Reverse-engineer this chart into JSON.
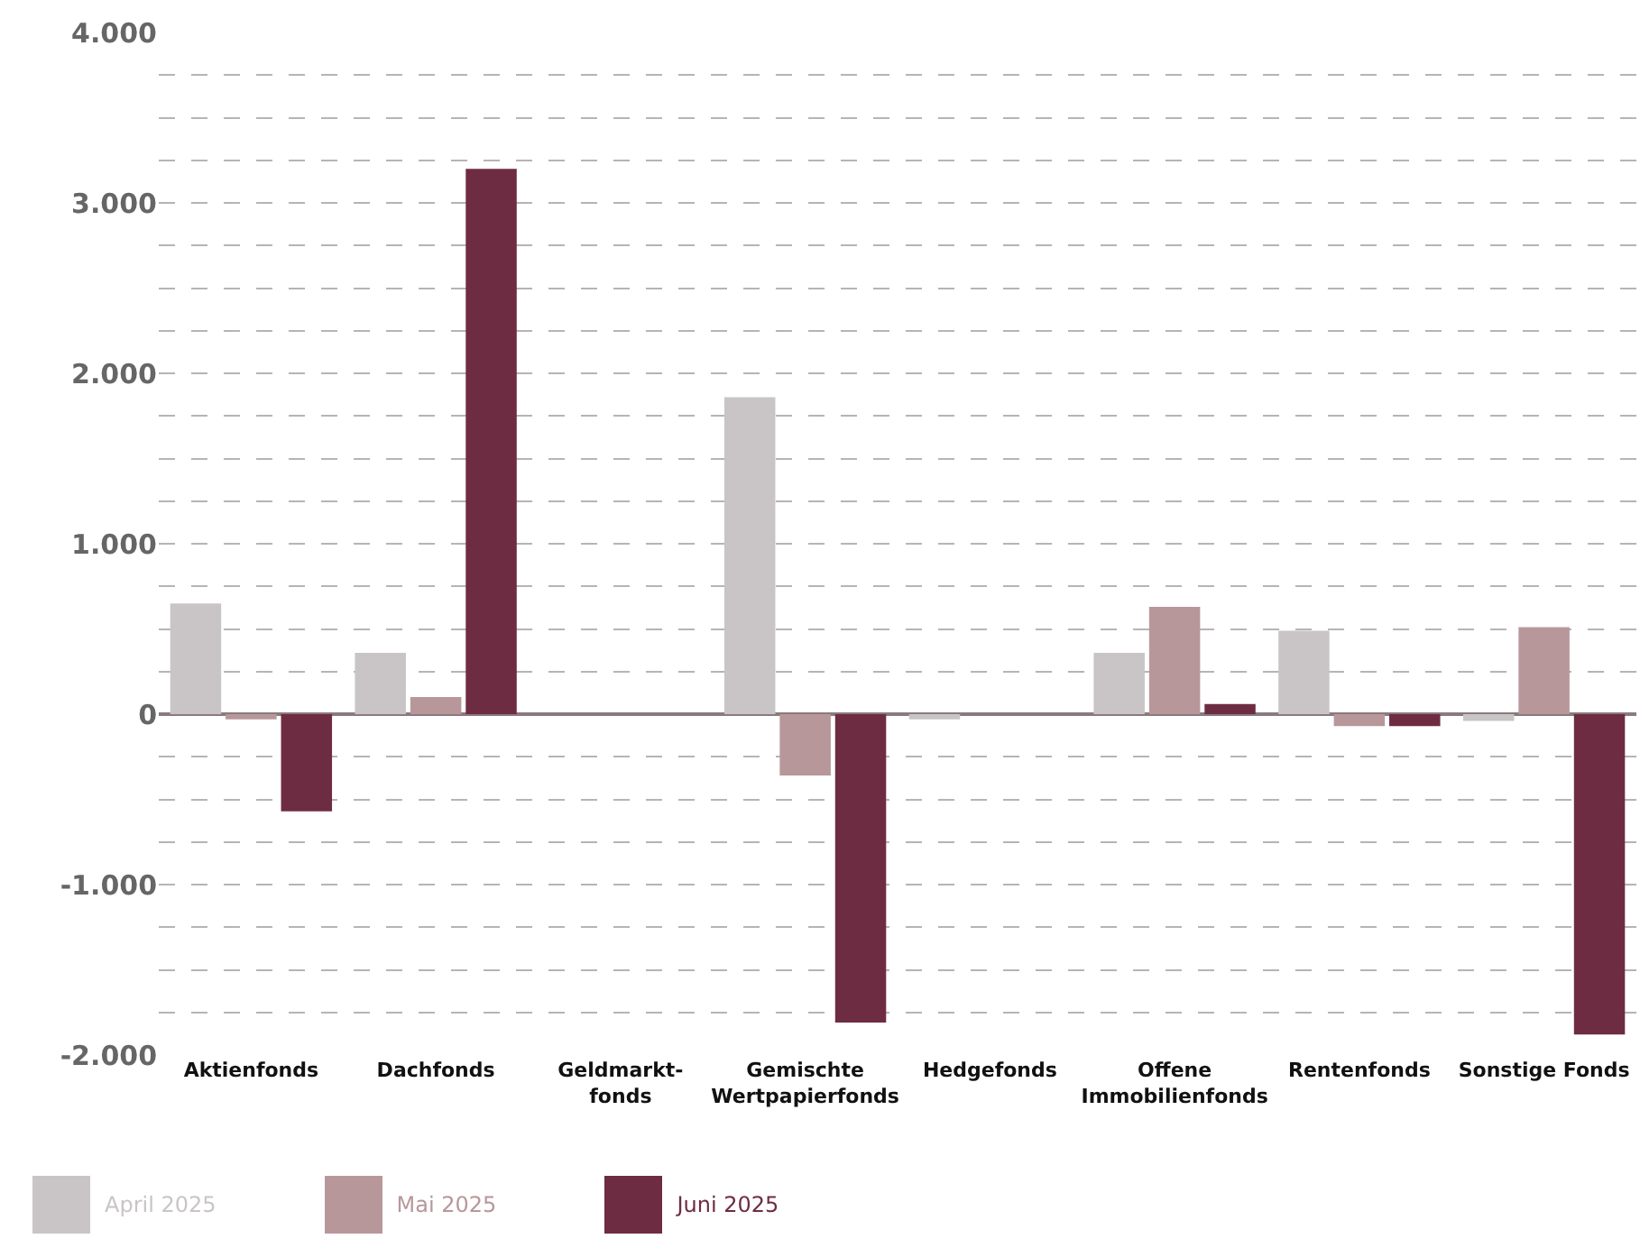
{
  "chart_data": {
    "type": "bar",
    "categories": [
      "Aktienfonds",
      "Dachfonds",
      "Geldmarkt-\nfonds",
      "Gemischte\nWertpapierfonds",
      "Hedgefonds",
      "Offene\nImmobilienfonds",
      "Rentenfonds",
      "Sonstige Fonds"
    ],
    "series": [
      {
        "name": "April 2025",
        "color": "#c9c5c6",
        "values": [
          650,
          360,
          0,
          1860,
          -30,
          360,
          490,
          -40
        ]
      },
      {
        "name": "Mai 2025",
        "color": "#b8979b",
        "values": [
          -30,
          100,
          0,
          -360,
          0,
          630,
          -70,
          510
        ]
      },
      {
        "name": "Juni 2025",
        "color": "#6e2c42",
        "values": [
          -570,
          3200,
          0,
          -1810,
          0,
          60,
          -70,
          -1880
        ]
      }
    ],
    "ylim": [
      -2000,
      4000
    ],
    "yticks": [
      {
        "value": -2000,
        "label": "-2.000"
      },
      {
        "value": -1750,
        "label": null
      },
      {
        "value": -1500,
        "label": null
      },
      {
        "value": -1250,
        "label": null
      },
      {
        "value": -1000,
        "label": "-1.000"
      },
      {
        "value": -750,
        "label": null
      },
      {
        "value": -500,
        "label": null
      },
      {
        "value": -250,
        "label": null
      },
      0,
      {
        "value": 250,
        "label": null
      },
      {
        "value": 500,
        "label": null
      },
      {
        "value": 750,
        "label": null
      },
      {
        "value": 1000,
        "label": "1.000"
      },
      {
        "value": 1250,
        "label": null
      },
      {
        "value": 1500,
        "label": null
      },
      {
        "value": 1750,
        "label": null
      },
      {
        "value": 2000,
        "label": "2.000"
      },
      {
        "value": 2250,
        "label": null
      },
      {
        "value": 2500,
        "label": null
      },
      {
        "value": 2750,
        "label": null
      },
      {
        "value": 3000,
        "label": "3.000"
      },
      {
        "value": 3250,
        "label": null
      },
      {
        "value": 3500,
        "label": null
      },
      {
        "value": 3750,
        "label": null
      },
      {
        "value": 4000,
        "label": "4.000"
      }
    ],
    "grid": "y",
    "legend": "bottom left"
  }
}
